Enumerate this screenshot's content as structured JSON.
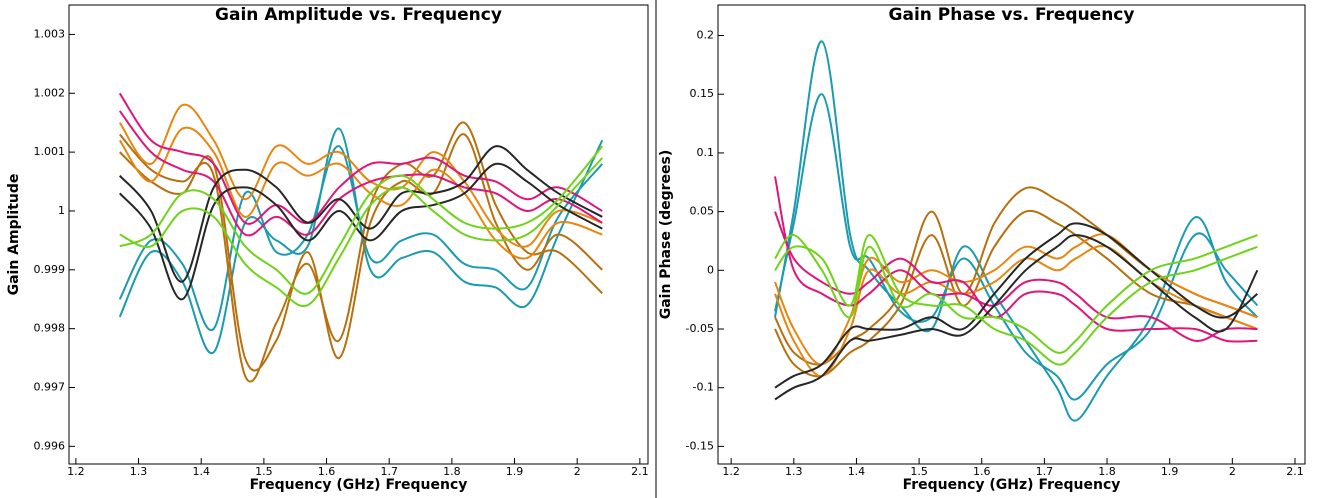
{
  "chart_data": [
    {
      "type": "line",
      "title": "Gain Amplitude vs. Frequency",
      "xlabel": "Frequency (GHz) Frequency",
      "ylabel": "Gain Amplitude",
      "xlim": [
        1.189,
        2.113
      ],
      "ylim": [
        0.9957,
        1.0035
      ],
      "xticks": [
        1.2,
        1.3,
        1.4,
        1.5,
        1.6,
        1.7,
        1.8,
        1.9,
        2,
        2.1
      ],
      "yticks": [
        0.996,
        0.997,
        0.998,
        0.999,
        1,
        1.001,
        1.002,
        1.003
      ],
      "x": [
        1.27,
        1.32,
        1.37,
        1.42,
        1.47,
        1.52,
        1.57,
        1.62,
        1.67,
        1.72,
        1.77,
        1.82,
        1.87,
        1.92,
        1.97,
        2.04
      ],
      "series": [
        {
          "color": "#1a9bb0",
          "values": [
            0.9982,
            0.9993,
            0.9988,
            0.9976,
            0.9998,
            0.9995,
            0.9994,
            1.0014,
            0.999,
            0.9992,
            0.9993,
            0.9988,
            0.9987,
            0.9984,
            0.9996,
            1.0012
          ]
        },
        {
          "color": "#1a9bb0",
          "values": [
            0.9985,
            0.9995,
            0.9991,
            0.998,
            1.0003,
            0.9993,
            0.9996,
            1.0011,
            0.9992,
            0.9995,
            0.9996,
            0.9991,
            0.999,
            0.9987,
            0.9999,
            1.0008
          ]
        },
        {
          "color": "#b8700e",
          "values": [
            1.001,
            1.0005,
            1.0003,
            1.0008,
            0.9975,
            0.9978,
            0.9993,
            0.9975,
            0.9998,
            1.0005,
            1.0003,
            1.0013,
            0.9998,
            0.999,
            0.9996,
            0.999
          ]
        },
        {
          "color": "#b8700e",
          "values": [
            1.0013,
            1.0007,
            1.0005,
            1.0006,
            0.9972,
            0.9981,
            0.9991,
            0.9978,
            1.0001,
            1.0008,
            1.0006,
            1.0015,
            1.0001,
            0.9993,
            0.9993,
            0.9986
          ]
        },
        {
          "color": "#e8860f",
          "values": [
            1.0015,
            1.0008,
            1.0018,
            1.0012,
            1.0002,
            1.0011,
            1.0008,
            1.001,
            1.0005,
            1.0004,
            1.001,
            1.0005,
            0.9997,
            0.9994,
            1,
            0.9998
          ]
        },
        {
          "color": "#e8860f",
          "values": [
            1.0012,
            1.0005,
            1.0014,
            1.001,
            0.9999,
            1.0008,
            1.0006,
            1.0008,
            1.0003,
            1.0001,
            1.0007,
            1.0003,
            0.9995,
            0.9992,
            0.9998,
            0.9996
          ]
        },
        {
          "color": "#e0157a",
          "values": [
            1.002,
            1.0012,
            1.001,
            1.0008,
            0.9998,
            1.0001,
            0.9998,
            1.0004,
            1.0008,
            1.0008,
            1.0009,
            1.0006,
            1.0005,
            1.0002,
            1.0004,
            1
          ]
        },
        {
          "color": "#e0157a",
          "values": [
            1.0017,
            1.001,
            1.0007,
            1.0005,
            0.9996,
            0.9999,
            0.9996,
            1.0002,
            1.0005,
            1.0006,
            1.0006,
            1.0004,
            1.0003,
            1,
            1.0002,
            0.9998
          ]
        },
        {
          "color": "#262626",
          "values": [
            1.0006,
            1,
            0.9988,
            1.0004,
            1.0007,
            1.0004,
            0.9998,
            1.0002,
            0.9997,
            1.0003,
            1.0003,
            1.0005,
            1.0011,
            1.0007,
            1.0003,
            0.9999
          ]
        },
        {
          "color": "#262626",
          "values": [
            1.0003,
            0.9997,
            0.9985,
            1.0001,
            1.0004,
            1.0001,
            0.9995,
            1,
            0.9995,
            1,
            1.0001,
            1.0003,
            1.0008,
            1.0005,
            1.0001,
            0.9997
          ]
        },
        {
          "color": "#6fd31a",
          "values": [
            0.9994,
            0.9996,
            1.0003,
            1.0002,
            0.9994,
            0.999,
            0.9986,
            0.9994,
            1.0003,
            1.0006,
            1.0002,
            0.9998,
            0.9997,
            0.9998,
            1.0002,
            1.0011
          ]
        },
        {
          "color": "#6fd31a",
          "values": [
            0.9996,
            0.9994,
            1,
            0.9999,
            0.9991,
            0.9987,
            0.9984,
            0.9992,
            1.0001,
            1.0004,
            1,
            0.9996,
            0.9995,
            0.9996,
            1.0001,
            1.0009
          ]
        }
      ]
    },
    {
      "type": "line",
      "title": "Gain Phase vs. Frequency",
      "xlabel": "Frequency (GHz) Frequency",
      "ylabel": "Gain Phase (degrees)",
      "xlim": [
        1.179,
        2.116
      ],
      "ylim": [
        -0.165,
        0.226
      ],
      "xticks": [
        1.2,
        1.3,
        1.4,
        1.5,
        1.6,
        1.7,
        1.8,
        1.9,
        2,
        2.1
      ],
      "yticks": [
        -0.15,
        -0.1,
        -0.05,
        0,
        0.05,
        0.1,
        0.15,
        0.2
      ],
      "x": [
        1.27,
        1.3,
        1.345,
        1.39,
        1.42,
        1.47,
        1.52,
        1.57,
        1.62,
        1.67,
        1.72,
        1.75,
        1.8,
        1.87,
        1.94,
        1.99,
        2.04
      ],
      "series": [
        {
          "color": "#1a9bb0",
          "values": [
            -0.04,
            0.05,
            0.195,
            0.03,
            0.0,
            -0.03,
            -0.05,
            0.02,
            -0.02,
            -0.06,
            -0.1,
            -0.128,
            -0.09,
            -0.04,
            0.045,
            -0.01,
            -0.04
          ]
        },
        {
          "color": "#1a9bb0",
          "values": [
            -0.035,
            0.04,
            0.15,
            0.02,
            0.01,
            -0.035,
            -0.04,
            0.01,
            -0.03,
            -0.07,
            -0.09,
            -0.11,
            -0.08,
            -0.05,
            0.03,
            0.0,
            -0.03
          ]
        },
        {
          "color": "#b8700e",
          "values": [
            -0.04,
            -0.07,
            -0.08,
            -0.06,
            -0.05,
            -0.02,
            0.05,
            -0.02,
            0.04,
            0.07,
            0.06,
            0.05,
            0.03,
            0.0,
            -0.02,
            -0.03,
            -0.04
          ]
        },
        {
          "color": "#b8700e",
          "values": [
            -0.05,
            -0.08,
            -0.09,
            -0.07,
            -0.06,
            -0.03,
            0.03,
            -0.03,
            0.02,
            0.05,
            0.04,
            0.03,
            0.01,
            -0.02,
            -0.03,
            -0.04,
            -0.05
          ]
        },
        {
          "color": "#e8860f",
          "values": [
            -0.02,
            -0.06,
            -0.09,
            -0.05,
            0.0,
            -0.02,
            -0.01,
            -0.02,
            -0.01,
            0.01,
            0.0,
            0.01,
            0.02,
            -0.01,
            -0.03,
            -0.04,
            -0.05
          ]
        },
        {
          "color": "#e8860f",
          "values": [
            -0.01,
            -0.05,
            -0.08,
            -0.04,
            0.01,
            -0.01,
            0.0,
            -0.01,
            0.0,
            0.02,
            0.01,
            0.02,
            0.03,
            0.0,
            -0.02,
            -0.03,
            -0.04
          ]
        },
        {
          "color": "#e0157a",
          "values": [
            0.05,
            0.01,
            -0.01,
            -0.02,
            -0.01,
            0.01,
            -0.01,
            -0.01,
            -0.04,
            -0.02,
            -0.02,
            -0.03,
            -0.05,
            -0.05,
            -0.05,
            -0.06,
            -0.06
          ]
        },
        {
          "color": "#e0157a",
          "values": [
            0.08,
            0.0,
            -0.02,
            -0.03,
            -0.02,
            0.0,
            -0.02,
            -0.02,
            -0.03,
            -0.01,
            -0.01,
            -0.02,
            -0.04,
            -0.04,
            -0.06,
            -0.05,
            -0.05
          ]
        },
        {
          "color": "#262626",
          "values": [
            -0.1,
            -0.09,
            -0.08,
            -0.05,
            -0.05,
            -0.05,
            -0.04,
            -0.05,
            -0.02,
            0.01,
            0.03,
            0.04,
            0.03,
            0.0,
            -0.03,
            -0.04,
            -0.02
          ]
        },
        {
          "color": "#262626",
          "values": [
            -0.11,
            -0.1,
            -0.09,
            -0.06,
            -0.06,
            -0.055,
            -0.05,
            -0.055,
            -0.03,
            0.0,
            0.02,
            0.03,
            0.02,
            -0.01,
            -0.04,
            -0.05,
            0.0
          ]
        },
        {
          "color": "#6fd31a",
          "values": [
            0.0,
            0.02,
            0.01,
            -0.03,
            0.03,
            -0.02,
            -0.03,
            -0.03,
            -0.05,
            -0.06,
            -0.08,
            -0.07,
            -0.04,
            -0.01,
            0.0,
            0.01,
            0.02
          ]
        },
        {
          "color": "#6fd31a",
          "values": [
            0.01,
            0.03,
            0.0,
            -0.04,
            0.02,
            -0.03,
            -0.02,
            -0.04,
            -0.04,
            -0.05,
            -0.07,
            -0.06,
            -0.03,
            0.0,
            0.01,
            0.02,
            0.03
          ]
        }
      ]
    }
  ]
}
